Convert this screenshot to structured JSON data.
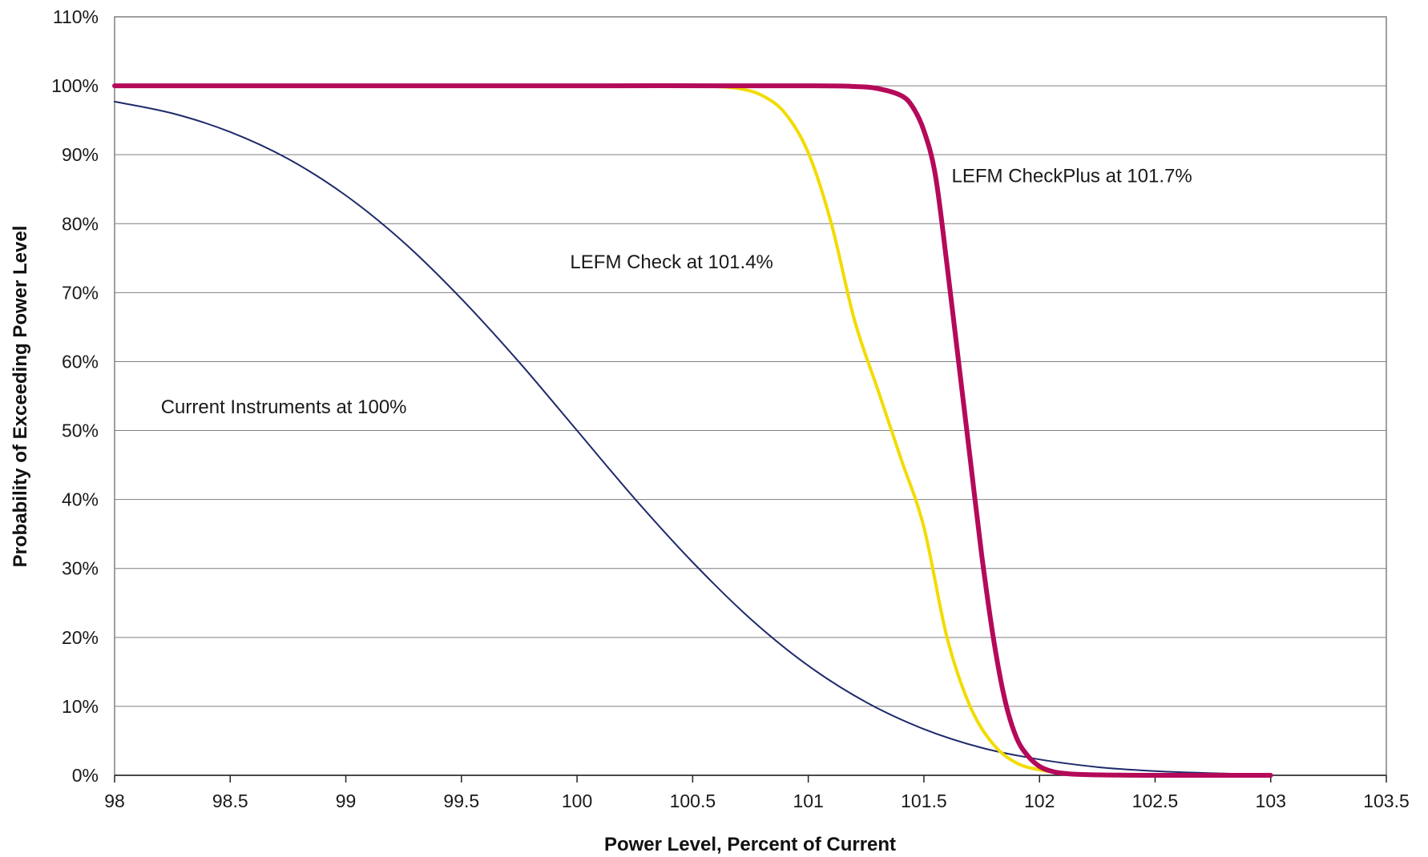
{
  "chart_data": {
    "type": "line",
    "title": "",
    "xlabel": "Power Level, Percent of Current",
    "ylabel": "Probability of Exceeding Power Level",
    "xlim": [
      98,
      103.5
    ],
    "ylim": [
      0,
      110
    ],
    "x_ticks": [
      "98",
      "98.5",
      "99",
      "99.5",
      "100",
      "100.5",
      "101",
      "101.5",
      "102",
      "102.5",
      "103",
      "103.5"
    ],
    "y_ticks": [
      "0%",
      "10%",
      "20%",
      "30%",
      "40%",
      "50%",
      "60%",
      "70%",
      "80%",
      "90%",
      "100%",
      "110%"
    ],
    "grid": true,
    "legend": "none",
    "series": [
      {
        "color": "#1f2a6b",
        "x": [
          98.0,
          98.25,
          98.5,
          98.75,
          99.0,
          99.25,
          99.5,
          99.75,
          100.0,
          100.25,
          100.5,
          100.75,
          101.0,
          101.25,
          101.5,
          101.75,
          102.0,
          102.25,
          102.5,
          102.75,
          103.0
        ],
        "y": [
          97.7,
          96.0,
          93.3,
          89.4,
          84.1,
          77.3,
          69.1,
          59.9,
          50.0,
          40.1,
          30.9,
          22.7,
          15.9,
          10.6,
          6.7,
          4.0,
          2.3,
          1.2,
          0.6,
          0.3,
          0.1
        ]
      },
      {
        "color": "#f2dc00",
        "x": [
          98.0,
          99.0,
          100.0,
          100.5,
          100.6,
          100.7,
          100.8,
          100.9,
          101.0,
          101.1,
          101.2,
          101.3,
          101.4,
          101.5,
          101.6,
          101.7,
          101.8,
          101.9,
          102.0,
          102.1,
          102.2,
          102.4,
          102.7,
          103.0
        ],
        "y": [
          100.0,
          100.0,
          100.0,
          100.0,
          99.9,
          99.6,
          98.6,
          96.0,
          90.3,
          80.0,
          66.0,
          56.0,
          46.0,
          36.0,
          20.0,
          10.0,
          4.5,
          1.8,
          0.8,
          0.3,
          0.1,
          0.0,
          0.0,
          0.0
        ]
      },
      {
        "color": "#b5095a",
        "x": [
          98.0,
          99.0,
          100.0,
          101.0,
          101.2,
          101.3,
          101.4,
          101.45,
          101.5,
          101.55,
          101.6,
          101.65,
          101.7,
          101.75,
          101.8,
          101.85,
          101.9,
          101.95,
          102.0,
          102.05,
          102.1,
          102.2,
          102.5,
          103.0
        ],
        "y": [
          100.0,
          100.0,
          100.0,
          100.0,
          99.9,
          99.6,
          98.6,
          97.0,
          93.5,
          87.0,
          74.0,
          60.0,
          46.0,
          32.0,
          20.0,
          11.0,
          5.5,
          2.8,
          1.3,
          0.6,
          0.3,
          0.1,
          0.0,
          0.0
        ]
      }
    ],
    "annotations": [
      {
        "text": "LEFM CheckPlus at 101.7%",
        "x": 101.62,
        "y": 86
      },
      {
        "text": "LEFM Check at 101.4%",
        "x": 99.97,
        "y": 73.5
      },
      {
        "text": "Current Instruments at 100%",
        "x": 98.2,
        "y": 52.5
      }
    ]
  }
}
